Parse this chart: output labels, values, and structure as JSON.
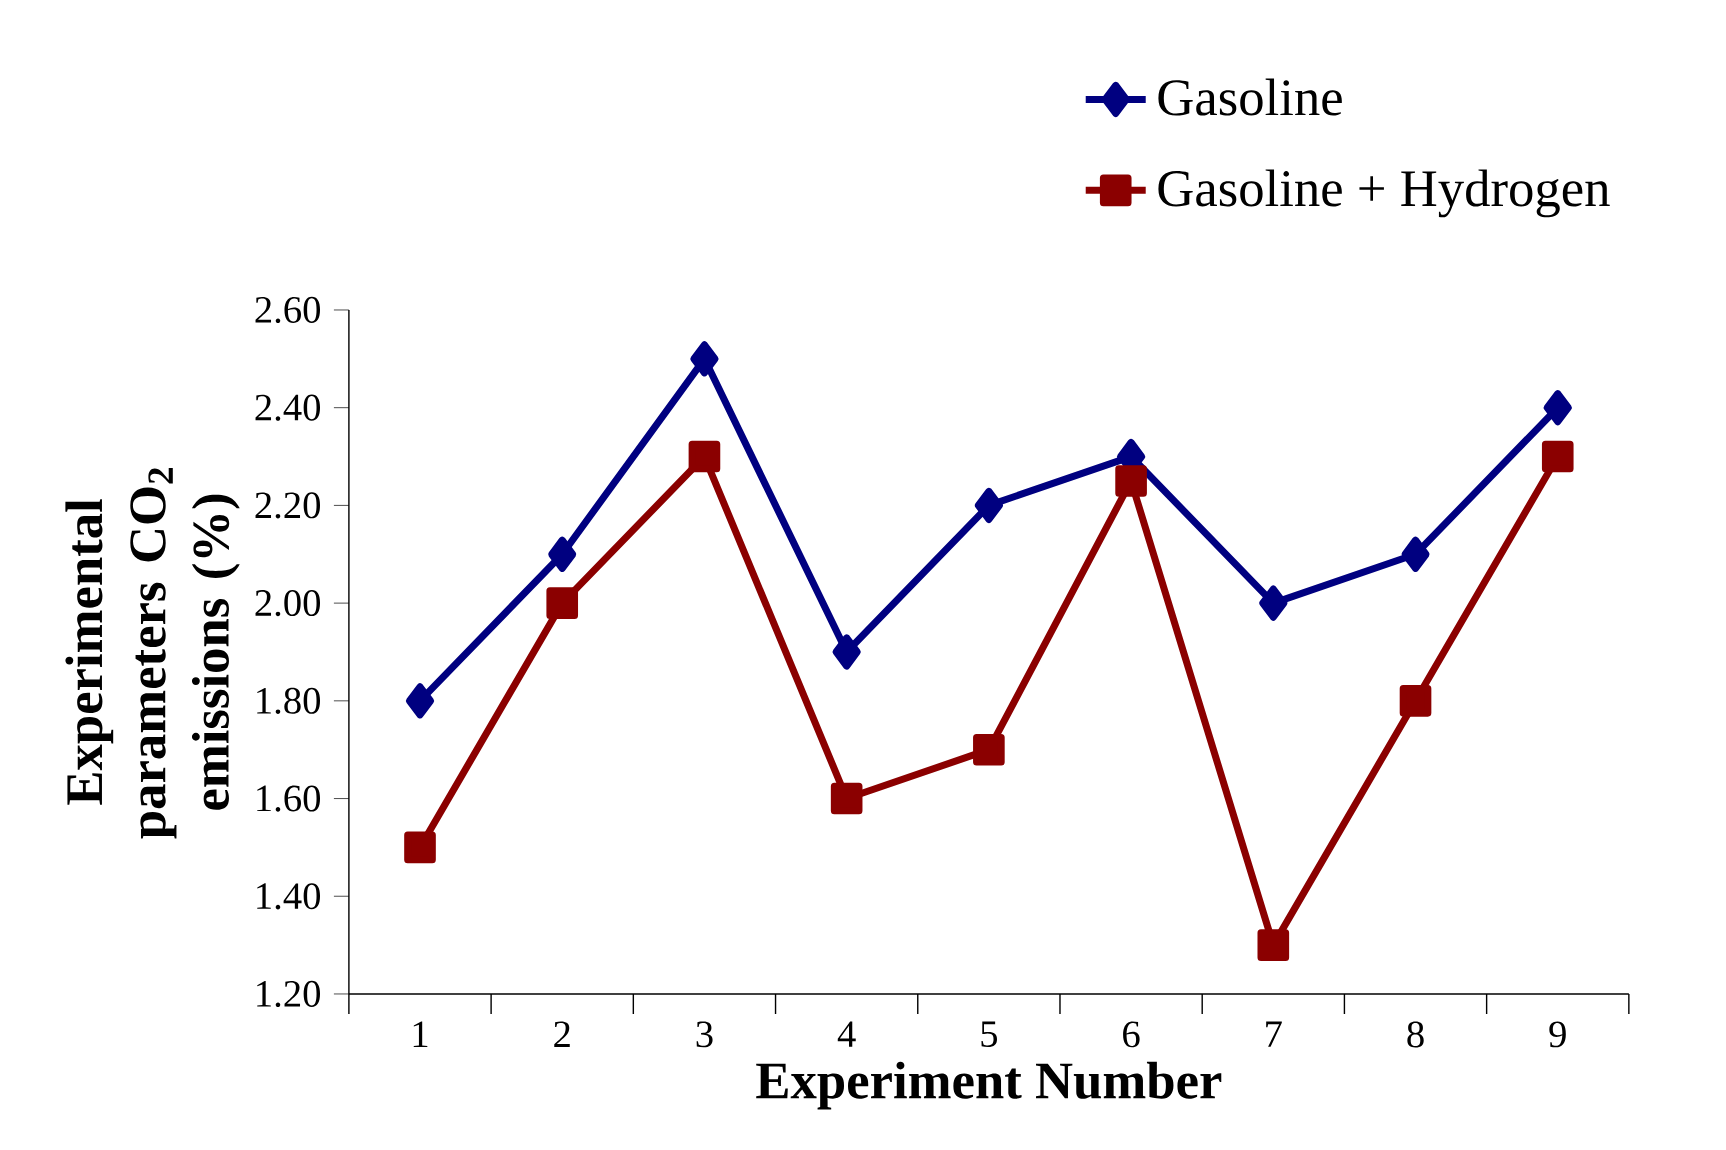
{
  "chart_data": {
    "type": "line",
    "xlabel": "Experiment Number",
    "ylabel": "Experimental parameters CO$_{2}$ emissions (%)",
    "categories": [
      "1",
      "2",
      "3",
      "4",
      "5",
      "6",
      "7",
      "8",
      "9"
    ],
    "series": [
      {
        "name": "Gasoline",
        "color": "#000080",
        "marker": "diamond",
        "values": [
          1.8,
          2.1,
          2.5,
          1.9,
          2.2,
          2.3,
          2.0,
          2.1,
          2.4
        ]
      },
      {
        "name": "Gasoline + Hydrogen",
        "color": "#8b0000",
        "marker": "square",
        "values": [
          1.5,
          2.0,
          2.3,
          1.6,
          1.7,
          2.25,
          1.3,
          1.8,
          2.3
        ]
      }
    ],
    "ylim": [
      1.2,
      2.6
    ],
    "yticks": [
      {
        "value": 1.2,
        "label": "1.20"
      },
      {
        "value": 1.4,
        "label": "1.40"
      },
      {
        "value": 1.6,
        "label": "1.60"
      },
      {
        "value": 1.8,
        "label": "1.80"
      },
      {
        "value": 2.0,
        "label": "2.00"
      },
      {
        "value": 2.2,
        "label": "2.20"
      },
      {
        "value": 2.4,
        "label": "2.40"
      },
      {
        "value": 2.6,
        "label": "2.60"
      }
    ],
    "legend": "top right",
    "grid": false
  }
}
